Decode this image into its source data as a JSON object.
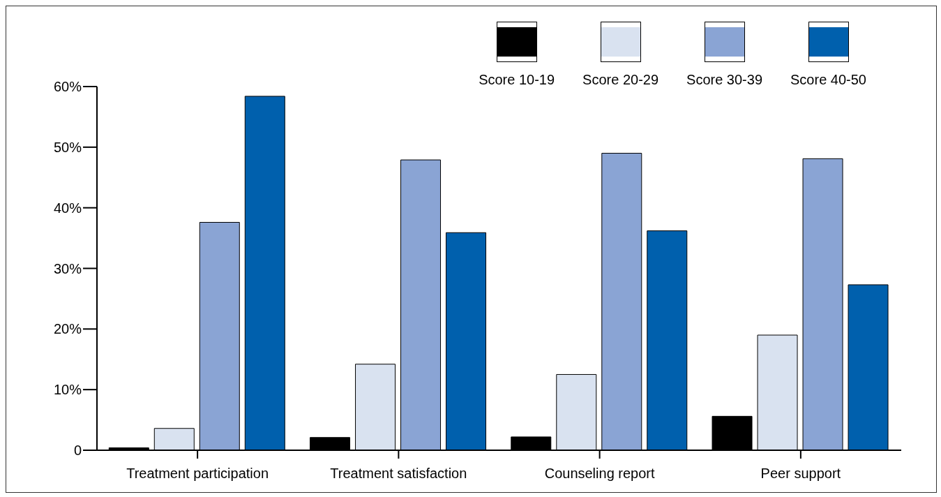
{
  "chart_data": {
    "type": "bar",
    "categories": [
      "Treatment participation",
      "Treatment satisfaction",
      "Counseling report",
      "Peer support"
    ],
    "series": [
      {
        "name": "Score 10-19",
        "color": "#000000",
        "values": [
          0.4,
          2.1,
          2.2,
          5.6
        ]
      },
      {
        "name": "Score 20-29",
        "color": "#d9e2f0",
        "values": [
          3.6,
          14.2,
          12.5,
          19.0
        ]
      },
      {
        "name": "Score 30-39",
        "color": "#8aa4d4",
        "values": [
          37.6,
          47.9,
          49.0,
          48.1
        ]
      },
      {
        "name": "Score 40-50",
        "color": "#0060ad",
        "values": [
          58.4,
          35.9,
          36.2,
          27.3
        ]
      }
    ],
    "ylim": [
      0,
      60
    ],
    "yticks": [
      {
        "value": 0,
        "label": "0"
      },
      {
        "value": 10,
        "label": "10%"
      },
      {
        "value": 20,
        "label": "20%"
      },
      {
        "value": 30,
        "label": "30%"
      },
      {
        "value": 40,
        "label": "40%"
      },
      {
        "value": 50,
        "label": "50%"
      },
      {
        "value": 60,
        "label": "60%"
      }
    ],
    "grid": false,
    "legend": "top right"
  }
}
